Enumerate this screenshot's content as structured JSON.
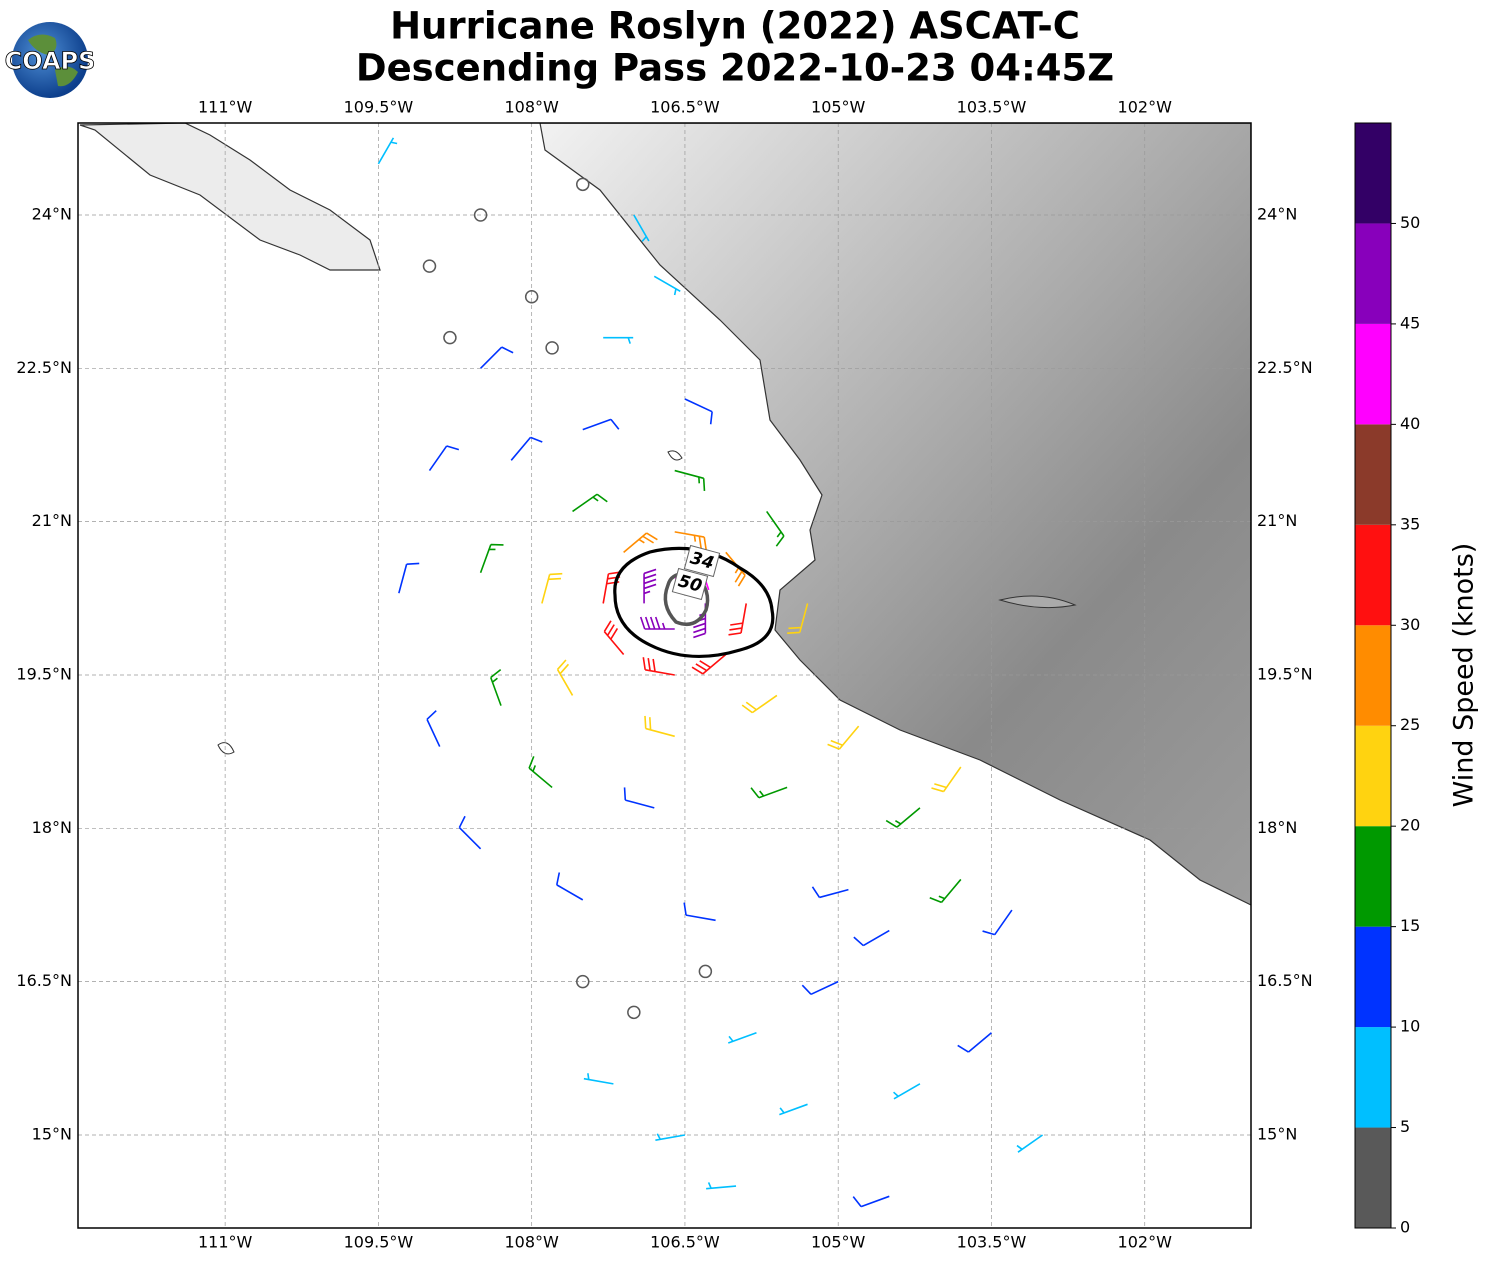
{
  "header": {
    "title": [
      "Hurricane Roslyn (2022) ASCAT-C",
      "Descending Pass 2022-10-23 04:45Z"
    ],
    "logo": "COAPS"
  },
  "map": {
    "xlim": [
      -112.44,
      -100.96
    ],
    "ylim": [
      14.09,
      24.9
    ],
    "grid": true,
    "xticks": [
      {
        "value": -111,
        "label": "111°W"
      },
      {
        "value": -109.5,
        "label": "109.5°W"
      },
      {
        "value": -108,
        "label": "108°W"
      },
      {
        "value": -106.5,
        "label": "106.5°W"
      },
      {
        "value": -105,
        "label": "105°W"
      },
      {
        "value": -103.5,
        "label": "103.5°W"
      },
      {
        "value": -102,
        "label": "102°W"
      }
    ],
    "yticks": [
      {
        "value": 15,
        "label": "15°N"
      },
      {
        "value": 16.5,
        "label": "16.5°N"
      },
      {
        "value": 18,
        "label": "18°N"
      },
      {
        "value": 19.5,
        "label": "19.5°N"
      },
      {
        "value": 21,
        "label": "21°N"
      },
      {
        "value": 22.5,
        "label": "22.5°N"
      },
      {
        "value": 24,
        "label": "24°N"
      }
    ],
    "contours": [
      {
        "level": 34,
        "color": "#000000"
      },
      {
        "level": 50,
        "color": "#555555"
      }
    ],
    "barbs": {
      "lon": [
        -106.9,
        -106.3,
        -106.6,
        -106.6,
        -107.3,
        -105.9,
        -106.6,
        -106.6,
        -107.1,
        -106.1,
        -107.1,
        -106.1,
        -107.9,
        -105.3,
        -106.6,
        -106.6,
        -107.6,
        -105.7,
        -107.6,
        -105.6,
        -108.5,
        -108.3,
        -107.8,
        -106.8,
        -105.5,
        -104.8,
        -107.5,
        -108.2,
        -106.5,
        -109.0,
        -109.3,
        -108.9,
        -108.5,
        -107.5,
        -106.2,
        -104.9,
        -104.2,
        -103.8,
        -108.5,
        -107.3,
        -106.8,
        -109.0,
        -108.5,
        -108.0,
        -107.5,
        -108.8,
        -107.8,
        -109.5,
        -107.0,
        -107.5,
        -107.0,
        -106.3,
        -107.2,
        -106.5,
        -105.8,
        -105.0,
        -104.5,
        -103.8,
        -103.3,
        -103.5,
        -104.2,
        -105.3,
        -103.0,
        -106.0,
        -104.5
      ],
      "lat": [
        20.2,
        20.2,
        20.45,
        19.95,
        20.2,
        20.2,
        20.9,
        19.5,
        20.7,
        20.7,
        19.7,
        19.7,
        20.2,
        20.2,
        21.5,
        18.9,
        21.1,
        21.1,
        19.3,
        19.3,
        20.5,
        19.2,
        18.4,
        18.2,
        18.4,
        19.0,
        21.9,
        21.6,
        22.2,
        21.5,
        20.3,
        18.8,
        17.8,
        17.3,
        17.1,
        17.4,
        18.2,
        18.6,
        22.5,
        22.8,
        23.4,
        23.5,
        24.0,
        23.2,
        24.3,
        22.8,
        22.7,
        24.5,
        24.0,
        16.5,
        16.2,
        16.6,
        15.5,
        15.0,
        16.0,
        16.5,
        17.0,
        17.5,
        17.2,
        16.0,
        15.5,
        15.3,
        15.0,
        14.5,
        14.4
      ],
      "speed": [
        45,
        45,
        40,
        48,
        30,
        30,
        25,
        32,
        27,
        25,
        33,
        30,
        22,
        20,
        18,
        22,
        17,
        18,
        22,
        22,
        18,
        17,
        15,
        12,
        17,
        20,
        12,
        14,
        10,
        13,
        14,
        12,
        12,
        10,
        10,
        14,
        18,
        22,
        12,
        9,
        8,
        3,
        2,
        3,
        4,
        2,
        3,
        7,
        8,
        3,
        4,
        2,
        5,
        6,
        8,
        10,
        13,
        16,
        14,
        10,
        9,
        8,
        8,
        7,
        10
      ],
      "direction": [
        0,
        180,
        90,
        270,
        10,
        190,
        100,
        280,
        50,
        140,
        320,
        230,
        15,
        195,
        105,
        285,
        55,
        145,
        330,
        235,
        20,
        340,
        310,
        285,
        250,
        220,
        70,
        40,
        115,
        35,
        15,
        335,
        315,
        300,
        280,
        255,
        230,
        215,
        45,
        90,
        120,
        0,
        0,
        0,
        60,
        0,
        0,
        30,
        150,
        0,
        240,
        0,
        280,
        260,
        250,
        245,
        240,
        220,
        215,
        230,
        240,
        250,
        235,
        265,
        250
      ]
    }
  },
  "colorbar": {
    "label": "Wind Speed (knots)",
    "lim": [
      0,
      55
    ],
    "bounds": [
      0,
      5,
      10,
      15,
      20,
      25,
      30,
      35,
      40,
      45,
      50,
      55
    ],
    "colors": [
      "#595959",
      "#00bfff",
      "#0033ff",
      "#009900",
      "#ffd310",
      "#ff8c00",
      "#ff1010",
      "#8b3a2a",
      "#ff00ff",
      "#8800bb",
      "#330066"
    ],
    "ticks": [
      0,
      5,
      10,
      15,
      20,
      25,
      30,
      35,
      40,
      45,
      50
    ]
  }
}
